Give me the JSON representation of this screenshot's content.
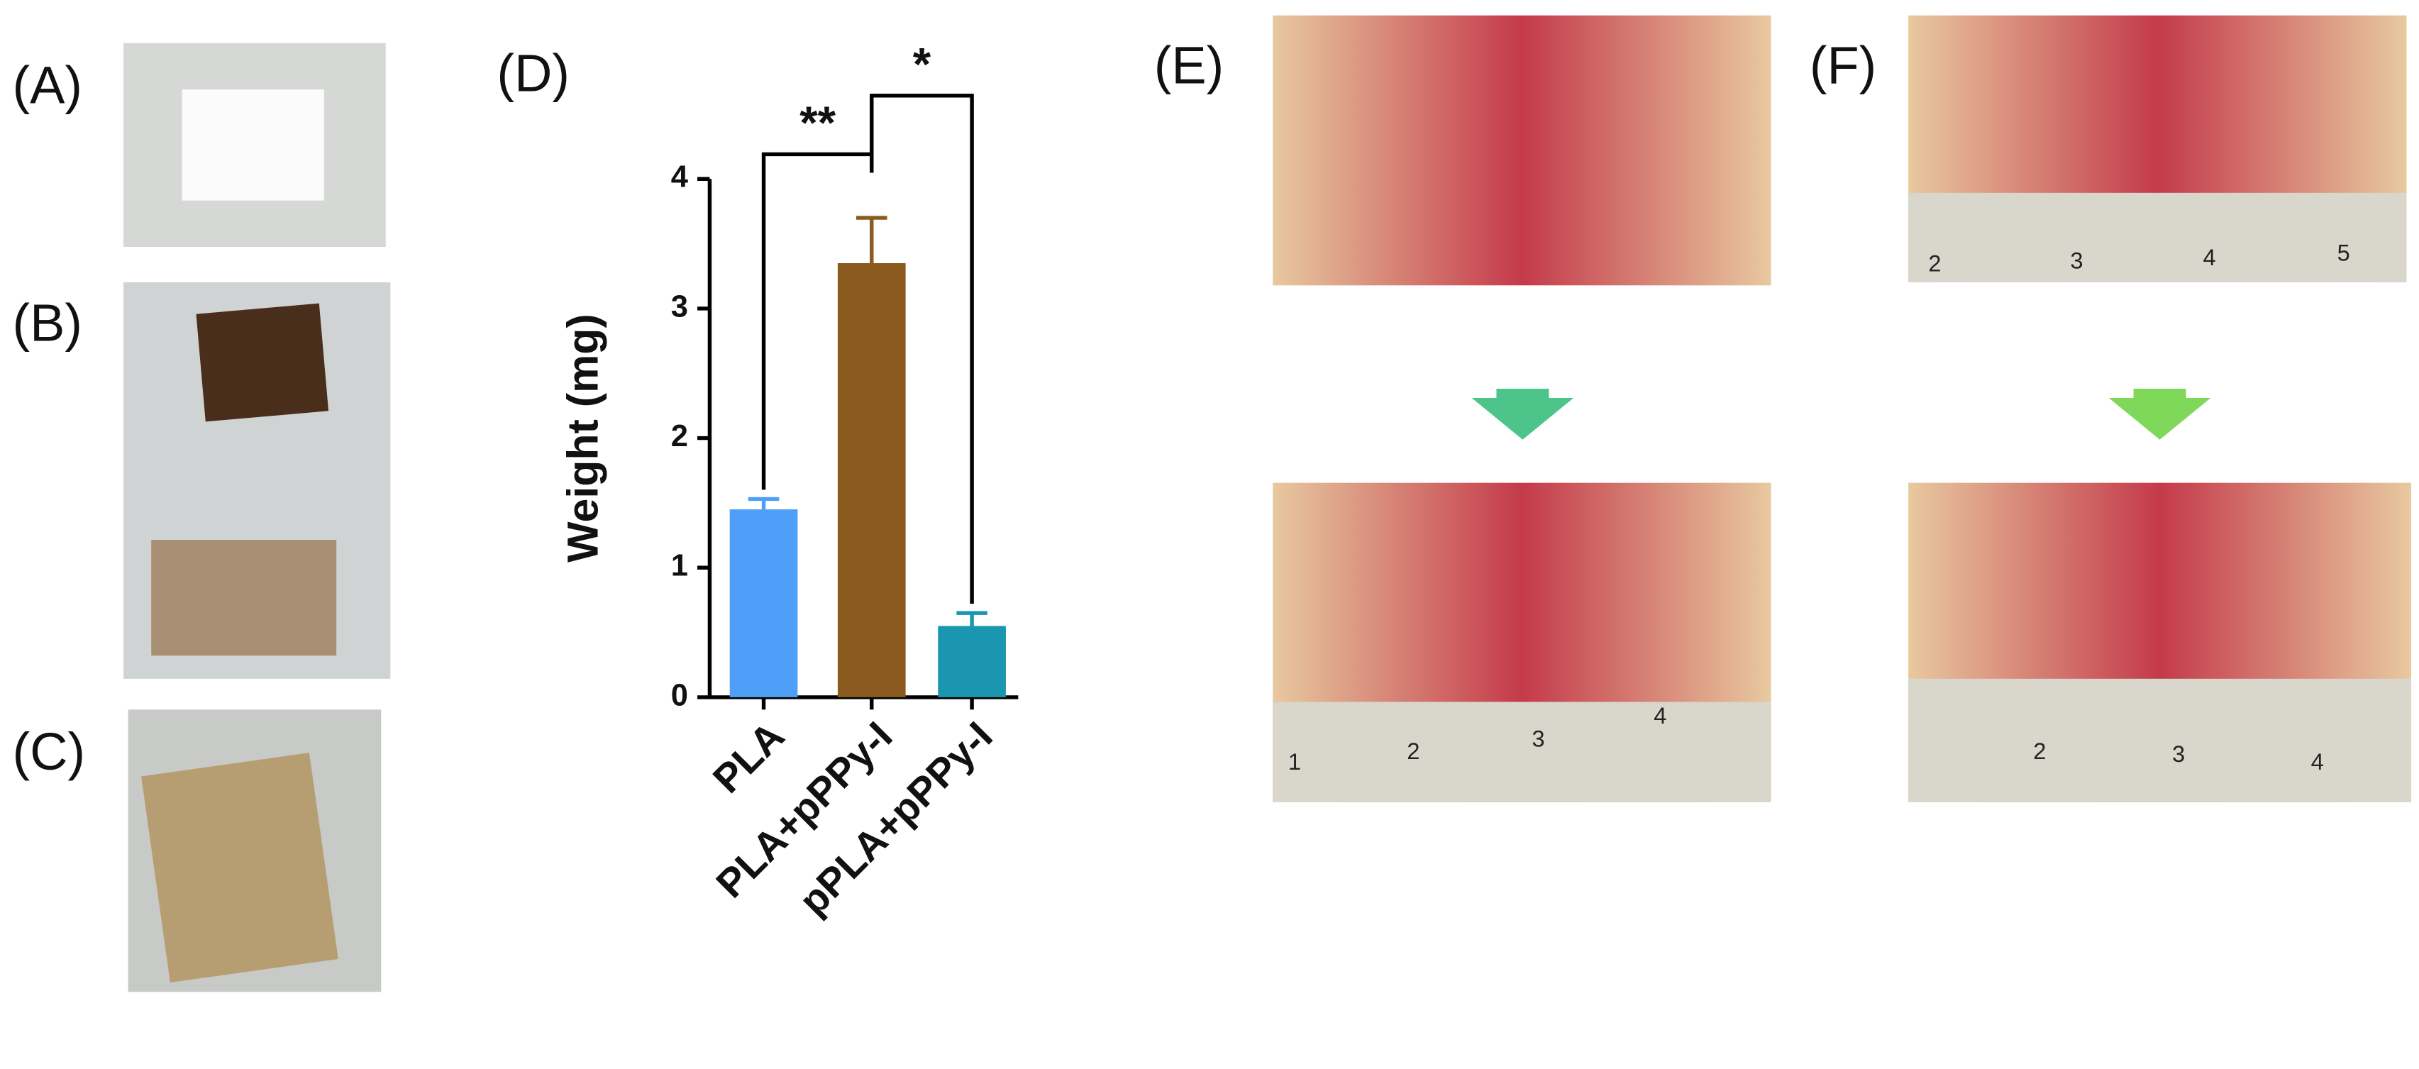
{
  "panel_labels": [
    "(A)",
    "(B)",
    "(C)",
    "(D)",
    "(E)",
    "(F)"
  ],
  "ruler_labels": {
    "E_bottom": [
      "1",
      "2",
      "3",
      "4"
    ],
    "F_top": [
      "2",
      "3",
      "4",
      "5"
    ],
    "F_bottom": [
      "2",
      "3",
      "4"
    ]
  },
  "chart_data": {
    "type": "bar",
    "y_label": "Weight (mg)",
    "categories": [
      "PLA",
      "PLA+pPPy-I",
      "pPLA+pPPy-I"
    ],
    "values": [
      1.45,
      3.35,
      0.55
    ],
    "errors": [
      0.08,
      0.35,
      0.1
    ],
    "colors": [
      "#4f9ef8",
      "#8b5a1f",
      "#1a96b0"
    ],
    "ylim": [
      0,
      4
    ],
    "yticks": [
      0,
      1,
      2,
      3,
      4
    ],
    "grid": false,
    "annotations": [
      "**",
      "*"
    ]
  }
}
